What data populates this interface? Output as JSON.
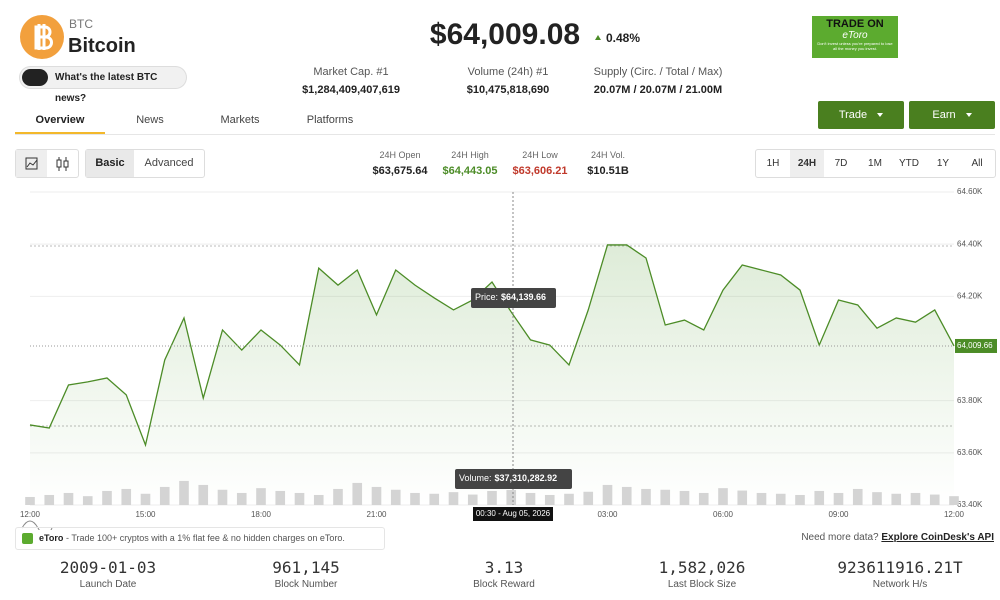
{
  "header": {
    "ticker": "BTC",
    "name": "Bitcoin",
    "price": "$64,009.08",
    "change": "0.48%",
    "news_button": "What's the latest BTC news?"
  },
  "ad": {
    "headline": "TRADE ON",
    "brand": "eToro",
    "disclaimer": "Don't invest unless you're prepared to lose all the money you invest."
  },
  "stats": [
    {
      "label": "Market Cap. #1",
      "value": "$1,284,409,407,619"
    },
    {
      "label": "Volume (24h) #1",
      "value": "$10,475,818,690"
    },
    {
      "label": "Supply (Circ. / Total / Max)",
      "value": "20.07M / 20.07M / 21.00M"
    }
  ],
  "tabs": [
    "Overview",
    "News",
    "Markets",
    "Platforms"
  ],
  "buttons": [
    "Trade",
    "Earn"
  ],
  "modes": [
    "Basic",
    "Advanced"
  ],
  "ohlc": [
    {
      "label": "24H Open",
      "value": "$63,675.64"
    },
    {
      "label": "24H High",
      "value": "$64,443.05"
    },
    {
      "label": "24H Low",
      "value": "$63,606.21"
    },
    {
      "label": "24H Vol.",
      "value": "$10.51B"
    }
  ],
  "ranges": [
    "1H",
    "24H",
    "7D",
    "1M",
    "YTD",
    "1Y",
    "All"
  ],
  "chart_data": {
    "type": "line",
    "categories": [
      "12:00",
      null,
      null,
      null,
      null,
      null,
      "15:00",
      null,
      null,
      null,
      null,
      null,
      "18:00",
      null,
      null,
      null,
      null,
      null,
      "21:00",
      null,
      null,
      null,
      null,
      null,
      null,
      null,
      null,
      null,
      null,
      null,
      "03:00",
      null,
      null,
      null,
      null,
      null,
      "06:00",
      null,
      null,
      null,
      null,
      null,
      "09:00",
      null,
      null,
      null,
      null,
      null,
      "12:00"
    ],
    "series": [
      {
        "color": "#4c8c27",
        "values": [
          63707,
          63695,
          63860,
          63872,
          63887,
          63822,
          63630,
          63956,
          64117,
          63810,
          64071,
          63994,
          64071,
          64013,
          63937,
          64308,
          64243,
          64301,
          64129,
          64301,
          64243,
          64194,
          64148,
          64186,
          64255,
          64139.66,
          64033,
          64013,
          63937,
          64148,
          64397,
          64397,
          64347,
          64090,
          64109,
          64071,
          64224,
          64320,
          64301,
          64282,
          64224,
          64013,
          64186,
          64167,
          64078,
          64117,
          64101,
          64148,
          64009.66
        ]
      },
      {
        "color": "#d4d4d4",
        "axis": "y2",
        "values": [
          20000000,
          25000000,
          30000000,
          22000000,
          35000000,
          40000000,
          28000000,
          45000000,
          60000000,
          50000000,
          38000000,
          30000000,
          42000000,
          35000000,
          30000000,
          25000000,
          40000000,
          55000000,
          45000000,
          38000000,
          30000000,
          28000000,
          32000000,
          26000000,
          35000000,
          37310282.92,
          30000000,
          25000000,
          28000000,
          33000000,
          50000000,
          45000000,
          40000000,
          38000000,
          35000000,
          30000000,
          42000000,
          36000000,
          30000000,
          28000000,
          25000000,
          35000000,
          30000000,
          40000000,
          32000000,
          28000000,
          30000000,
          26000000,
          22000000
        ]
      }
    ],
    "ylim": [
      63400,
      64600
    ],
    "yticks": [
      {
        "value": 63400,
        "label": "63.40K"
      },
      {
        "value": 63600,
        "label": "63.60K"
      },
      {
        "value": 63800,
        "label": "63.80K"
      },
      {
        "value": 64200,
        "label": "64.20K"
      },
      {
        "value": 64400,
        "label": "64.40K"
      },
      {
        "value": 64600,
        "label": "64.60K"
      }
    ],
    "y2lim": [
      0,
      780000000
    ],
    "grid": true,
    "last_price_label": "64,009.66",
    "price_tooltip": {
      "label": "Price:",
      "value": "$64,139.66"
    },
    "volume_tooltip": {
      "label": "Volume:",
      "value": "$37,310,282.92"
    },
    "time_tooltip": "00:30 - Aug 05, 2026"
  },
  "footer": {
    "ad_brand": "eToro",
    "ad_text": "- Trade 100+ cryptos with a 1% flat fee & no hidden charges on eToro.",
    "api_prompt": "Need more data?",
    "api_link": "Explore CoinDesk's API"
  },
  "bottom_stats": [
    {
      "value": "2009-01-03",
      "label": "Launch Date"
    },
    {
      "value": "961,145",
      "label": "Block Number"
    },
    {
      "value": "3.13",
      "label": "Block Reward"
    },
    {
      "value": "1,582,026",
      "label": "Last Block Size"
    },
    {
      "value": "923611916.21T",
      "label": "Network H/s"
    }
  ]
}
